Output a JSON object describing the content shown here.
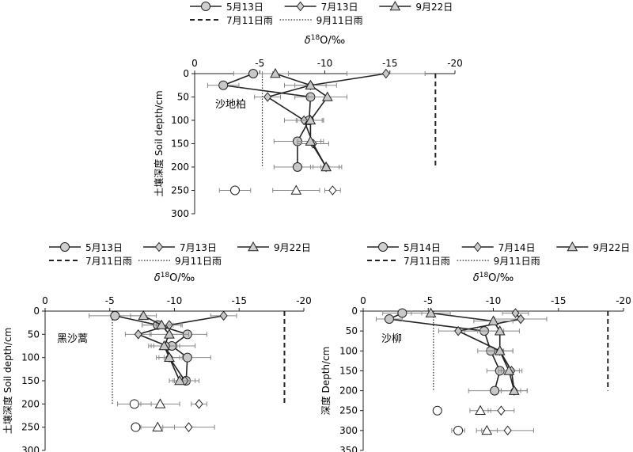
{
  "chart_data": [
    {
      "type": "scatter",
      "panel_label": "沙地柏",
      "xlabel": "δ18O/‰",
      "ylabel": "土壤深度 Soil depth/cm",
      "x_ticks": [
        "0",
        "-5",
        "-10",
        "-15",
        "-20"
      ],
      "y_ticks": [
        "0",
        "50",
        "100",
        "150",
        "200",
        "250",
        "300"
      ],
      "xlim": [
        0,
        -20
      ],
      "ylim": [
        0,
        300
      ],
      "series": [
        {
          "name": "5月13日",
          "marker": "circle",
          "points": [
            {
              "x": -4.5,
              "y": 0,
              "err": 1.5
            },
            {
              "x": -2.2,
              "y": 25,
              "err": 1.2
            },
            {
              "x": -8.9,
              "y": 50,
              "err": 1.2
            },
            {
              "x": -8.8,
              "y": 100,
              "err": 1.0
            },
            {
              "x": -7.9,
              "y": 145,
              "err": 1.8
            },
            {
              "x": -7.9,
              "y": 200,
              "err": 1.8
            },
            {
              "x": -3.1,
              "y": 250,
              "err": 1.2,
              "hollow": true
            }
          ]
        },
        {
          "name": "7月13日",
          "marker": "diamond",
          "points": [
            {
              "x": -14.7,
              "y": 0,
              "err": 3.0
            },
            {
              "x": -8.9,
              "y": 25,
              "err": 1.2
            },
            {
              "x": -5.6,
              "y": 50,
              "err": 1.0
            },
            {
              "x": -8.4,
              "y": 100,
              "err": 1.5
            },
            {
              "x": -9.1,
              "y": 150,
              "err": 1.2
            },
            {
              "x": -10.1,
              "y": 200,
              "err": 1.2
            },
            {
              "x": -10.6,
              "y": 250,
              "err": 0.6,
              "hollow": true
            }
          ]
        },
        {
          "name": "9月22日",
          "marker": "triangle",
          "points": [
            {
              "x": -6.2,
              "y": 0,
              "err": 1.0
            },
            {
              "x": -8.9,
              "y": 25,
              "err": 2.0
            },
            {
              "x": -10.2,
              "y": 50,
              "err": 1.5
            },
            {
              "x": -8.9,
              "y": 100,
              "err": 1.0
            },
            {
              "x": -8.9,
              "y": 145,
              "err": 1.0
            },
            {
              "x": -10.1,
              "y": 200,
              "err": 1.0
            },
            {
              "x": -7.8,
              "y": 250,
              "err": 1.8,
              "hollow": true
            }
          ]
        }
      ],
      "reference_lines": [
        {
          "name": "7月11日雨",
          "style": "dashed",
          "x": -18.5,
          "y_range": [
            0,
            200
          ]
        },
        {
          "name": "9月11日雨",
          "style": "dotted",
          "x": -5.2,
          "y_range": [
            0,
            200
          ]
        }
      ]
    },
    {
      "type": "scatter",
      "panel_label": "黑沙蒿",
      "xlabel": "δ18O/‰",
      "ylabel": "土壤深度 Soil depth/cm",
      "x_ticks": [
        "0",
        "-5",
        "-10",
        "-15",
        "-20"
      ],
      "y_ticks": [
        "0",
        "50",
        "100",
        "150",
        "200",
        "250",
        "300"
      ],
      "xlim": [
        0,
        -20
      ],
      "ylim": [
        0,
        300
      ],
      "series": [
        {
          "name": "5月13日",
          "marker": "circle",
          "points": [
            {
              "x": -5.4,
              "y": 10,
              "err": 2.0
            },
            {
              "x": -8.7,
              "y": 30,
              "err": 1.2
            },
            {
              "x": -11.0,
              "y": 50,
              "err": 1.5
            },
            {
              "x": -9.8,
              "y": 75,
              "err": 1.8
            },
            {
              "x": -11.0,
              "y": 100,
              "err": 1.8
            },
            {
              "x": -10.9,
              "y": 150,
              "err": 1.0
            },
            {
              "x": -6.9,
              "y": 200,
              "err": 1.3,
              "hollow": true
            },
            {
              "x": -7.0,
              "y": 250,
              "err": 0.3,
              "hollow": true
            }
          ]
        },
        {
          "name": "7月13日",
          "marker": "diamond",
          "points": [
            {
              "x": -13.8,
              "y": 10,
              "err": 1.0
            },
            {
              "x": -9.6,
              "y": 30,
              "err": 1.0
            },
            {
              "x": -7.2,
              "y": 50,
              "err": 1.0
            },
            {
              "x": -9.4,
              "y": 75,
              "err": 1.0
            },
            {
              "x": -9.6,
              "y": 100,
              "err": 0.8
            },
            {
              "x": -10.8,
              "y": 150,
              "err": 0.8
            },
            {
              "x": -11.9,
              "y": 200,
              "err": 0.6,
              "hollow": true
            },
            {
              "x": -11.1,
              "y": 250,
              "err": 2.0,
              "hollow": true
            }
          ]
        },
        {
          "name": "9月22日",
          "marker": "triangle",
          "points": [
            {
              "x": -7.6,
              "y": 10,
              "err": 1.0
            },
            {
              "x": -9.0,
              "y": 30,
              "err": 1.5
            },
            {
              "x": -9.6,
              "y": 50,
              "err": 1.5
            },
            {
              "x": -9.2,
              "y": 75,
              "err": 1.0
            },
            {
              "x": -9.6,
              "y": 100,
              "err": 1.0
            },
            {
              "x": -10.4,
              "y": 150,
              "err": 0.8
            },
            {
              "x": -8.9,
              "y": 200,
              "err": 1.5,
              "hollow": true
            },
            {
              "x": -8.7,
              "y": 250,
              "err": 1.3,
              "hollow": true
            }
          ]
        }
      ],
      "reference_lines": [
        {
          "name": "7月11日雨",
          "style": "dashed",
          "x": -18.5,
          "y_range": [
            0,
            200
          ]
        },
        {
          "name": "9月11日雨",
          "style": "dotted",
          "x": -5.2,
          "y_range": [
            0,
            200
          ]
        }
      ]
    },
    {
      "type": "scatter",
      "panel_label": "沙柳",
      "xlabel": "δ18O/‰",
      "ylabel": "深度 Depth/cm",
      "x_ticks": [
        "0",
        "-5",
        "-10",
        "-15",
        "-20"
      ],
      "y_ticks": [
        "0",
        "50",
        "100",
        "150",
        "200",
        "250",
        "300",
        "350"
      ],
      "xlim": [
        0,
        -20
      ],
      "ylim": [
        0,
        350
      ],
      "series": [
        {
          "name": "5月14日",
          "marker": "circle",
          "points": [
            {
              "x": -3.0,
              "y": 5,
              "err": 1.5
            },
            {
              "x": -2.0,
              "y": 20,
              "err": 1.0
            },
            {
              "x": -9.3,
              "y": 50,
              "err": 1.5
            },
            {
              "x": -9.8,
              "y": 100,
              "err": 1.0
            },
            {
              "x": -10.5,
              "y": 150,
              "err": 1.0
            },
            {
              "x": -10.1,
              "y": 200,
              "err": 2.0
            },
            {
              "x": -5.7,
              "y": 250,
              "err": 0.3,
              "hollow": true
            },
            {
              "x": -7.3,
              "y": 300,
              "err": 0.5,
              "hollow": true
            }
          ]
        },
        {
          "name": "7月14日",
          "marker": "diamond",
          "points": [
            {
              "x": -11.7,
              "y": 5,
              "err": 1.0
            },
            {
              "x": -12.1,
              "y": 20,
              "err": 2.0
            },
            {
              "x": -7.3,
              "y": 50,
              "err": 1.5
            },
            {
              "x": -10.5,
              "y": 100,
              "err": 1.0
            },
            {
              "x": -11.4,
              "y": 150,
              "err": 0.8
            },
            {
              "x": -11.6,
              "y": 200,
              "err": 1.0
            },
            {
              "x": -10.6,
              "y": 250,
              "err": 1.0,
              "hollow": true
            },
            {
              "x": -11.1,
              "y": 300,
              "err": 2.0,
              "hollow": true
            }
          ]
        },
        {
          "name": "9月22日",
          "marker": "triangle",
          "points": [
            {
              "x": -5.2,
              "y": 5,
              "err": 1.5
            },
            {
              "x": -10.0,
              "y": 25,
              "err": 1.5
            },
            {
              "x": -10.5,
              "y": 50,
              "err": 1.5
            },
            {
              "x": -10.5,
              "y": 100,
              "err": 1.0
            },
            {
              "x": -11.2,
              "y": 150,
              "err": 0.8
            },
            {
              "x": -11.6,
              "y": 200,
              "err": 1.0
            },
            {
              "x": -9.0,
              "y": 250,
              "err": 0.8,
              "hollow": true
            },
            {
              "x": -9.5,
              "y": 300,
              "err": 0.8,
              "hollow": true
            }
          ]
        }
      ],
      "reference_lines": [
        {
          "name": "7月11日雨",
          "style": "dashed",
          "x": -18.8,
          "y_range": [
            0,
            200
          ]
        },
        {
          "name": "9月11日雨",
          "style": "dotted",
          "x": -5.4,
          "y_range": [
            0,
            200
          ]
        }
      ]
    }
  ]
}
